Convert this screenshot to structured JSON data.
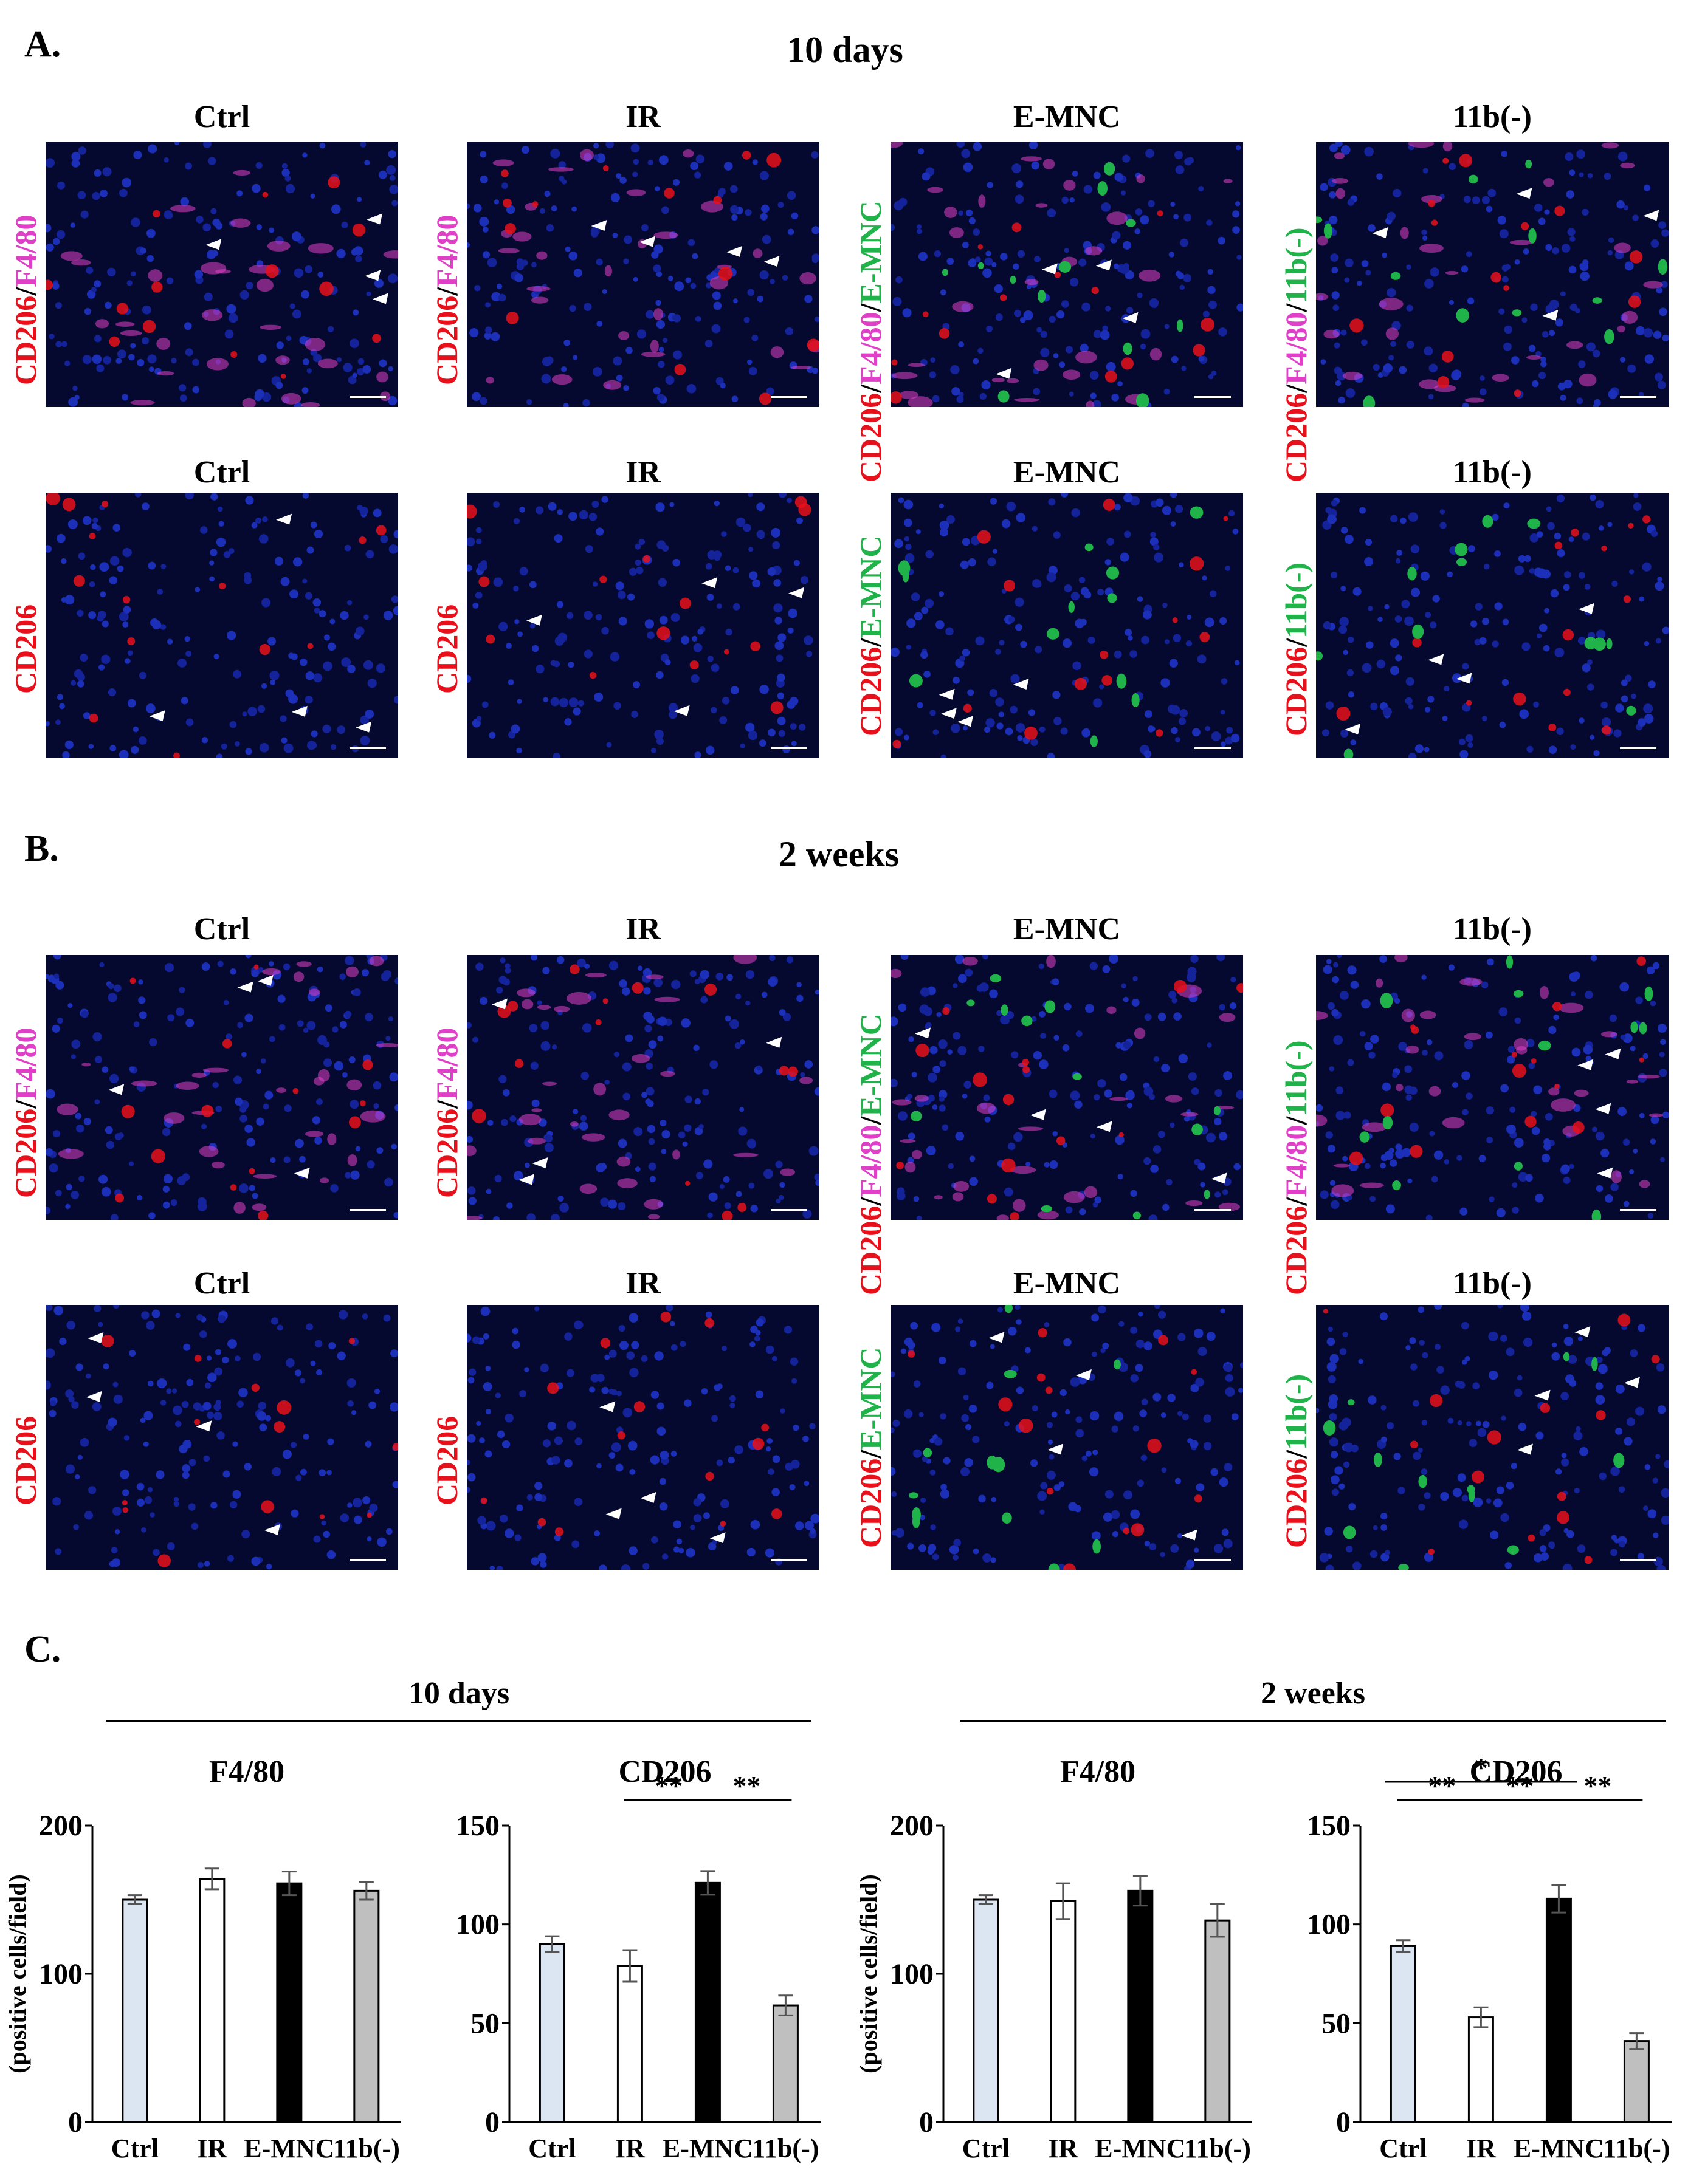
{
  "panelA": {
    "letter": "A.",
    "title": "10 days",
    "col_titles_top": [
      "Ctrl",
      "IR",
      "E-MNC",
      "11b(-)"
    ],
    "col_titles_bottom": [
      "Ctrl",
      "IR",
      "E-MNC",
      "11b(-)"
    ],
    "row1_labels": [
      [
        {
          "t": "CD206",
          "c": "red"
        },
        {
          "t": "/",
          "c": "black"
        },
        {
          "t": "F4/80",
          "c": "magenta"
        }
      ],
      [
        {
          "t": "CD206",
          "c": "red"
        },
        {
          "t": "/",
          "c": "black"
        },
        {
          "t": "F4/80",
          "c": "magenta"
        }
      ],
      [
        {
          "t": "CD206",
          "c": "red"
        },
        {
          "t": "/",
          "c": "black"
        },
        {
          "t": "F4/80",
          "c": "magenta"
        },
        {
          "t": "/",
          "c": "black"
        },
        {
          "t": "E-MNC",
          "c": "green"
        }
      ],
      [
        {
          "t": "CD206",
          "c": "red"
        },
        {
          "t": "/",
          "c": "black"
        },
        {
          "t": "F4/80",
          "c": "magenta"
        },
        {
          "t": "/",
          "c": "black"
        },
        {
          "t": "11b(-)",
          "c": "green"
        }
      ]
    ],
    "row2_labels": [
      [
        {
          "t": "CD206",
          "c": "red"
        }
      ],
      [
        {
          "t": "CD206",
          "c": "red"
        }
      ],
      [
        {
          "t": "CD206",
          "c": "red"
        },
        {
          "t": "/",
          "c": "black"
        },
        {
          "t": "E-MNC",
          "c": "green"
        }
      ],
      [
        {
          "t": "CD206",
          "c": "red"
        },
        {
          "t": "/",
          "c": "black"
        },
        {
          "t": "11b(-)",
          "c": "green"
        }
      ]
    ]
  },
  "panelB": {
    "letter": "B.",
    "title": "2 weeks",
    "col_titles_top": [
      "Ctrl",
      "IR",
      "E-MNC",
      "11b(-)"
    ],
    "col_titles_bottom": [
      "Ctrl",
      "IR",
      "E-MNC",
      "11b(-)"
    ],
    "row1_labels": [
      [
        {
          "t": "CD206",
          "c": "red"
        },
        {
          "t": "/",
          "c": "black"
        },
        {
          "t": "F4/80",
          "c": "magenta"
        }
      ],
      [
        {
          "t": "CD206",
          "c": "red"
        },
        {
          "t": "/",
          "c": "black"
        },
        {
          "t": "F4/80",
          "c": "magenta"
        }
      ],
      [
        {
          "t": "CD206",
          "c": "red"
        },
        {
          "t": "/",
          "c": "black"
        },
        {
          "t": "F4/80",
          "c": "magenta"
        },
        {
          "t": "/",
          "c": "black"
        },
        {
          "t": "E-MNC",
          "c": "green"
        }
      ],
      [
        {
          "t": "CD206",
          "c": "red"
        },
        {
          "t": "/",
          "c": "black"
        },
        {
          "t": "F4/80",
          "c": "magenta"
        },
        {
          "t": "/",
          "c": "black"
        },
        {
          "t": "11b(-)",
          "c": "green"
        }
      ]
    ],
    "row2_labels": [
      [
        {
          "t": "CD206",
          "c": "red"
        }
      ],
      [
        {
          "t": "CD206",
          "c": "red"
        }
      ],
      [
        {
          "t": "CD206",
          "c": "red"
        },
        {
          "t": "/",
          "c": "black"
        },
        {
          "t": "E-MNC",
          "c": "green"
        }
      ],
      [
        {
          "t": "CD206",
          "c": "red"
        },
        {
          "t": "/",
          "c": "black"
        },
        {
          "t": "11b(-)",
          "c": "green"
        }
      ]
    ]
  },
  "panelC": {
    "letter": "C.",
    "section_10d": "10 days",
    "section_2w": "2 weeks",
    "ylabel": "(positive cells/field)"
  },
  "colors": {
    "ctrl_fill": "#dce6f2",
    "ir_fill": "#ffffff",
    "emnc_fill": "#000000",
    "cd11b_fill": "#bfbfbf",
    "red": "#e8101a",
    "magenta": "#e040c8",
    "green": "#1fb34a",
    "tissue": "#050930"
  },
  "chart_data": [
    {
      "type": "bar",
      "title": "F4/80",
      "group": "10 days",
      "categories": [
        "Ctrl",
        "IR",
        "E-MNC",
        "11b(-)"
      ],
      "values": [
        150,
        164,
        161,
        156
      ],
      "errors": [
        3,
        7,
        8,
        6
      ],
      "ylim": [
        0,
        200
      ],
      "yticks": [
        0,
        100,
        200
      ],
      "ylabel": "(positive cells/field)",
      "significance": []
    },
    {
      "type": "bar",
      "title": "CD206",
      "group": "10 days",
      "categories": [
        "Ctrl",
        "IR",
        "E-MNC",
        "11b(-)"
      ],
      "values": [
        90,
        79,
        121,
        59
      ],
      "errors": [
        4,
        8,
        6,
        5
      ],
      "ylim": [
        0,
        150
      ],
      "yticks": [
        0,
        50,
        100,
        150
      ],
      "ylabel": "",
      "significance": [
        {
          "from": 1,
          "to": 2,
          "label": "**"
        },
        {
          "from": 2,
          "to": 3,
          "label": "**"
        }
      ]
    },
    {
      "type": "bar",
      "title": "F4/80",
      "group": "2 weeks",
      "categories": [
        "Ctrl",
        "IR",
        "E-MNC",
        "11b(-)"
      ],
      "values": [
        150,
        149,
        156,
        136
      ],
      "errors": [
        3,
        12,
        10,
        11
      ],
      "ylim": [
        0,
        200
      ],
      "yticks": [
        0,
        100,
        200
      ],
      "ylabel": "(positive cells/field)",
      "significance": []
    },
    {
      "type": "bar",
      "title": "CD206",
      "group": "2 weeks",
      "categories": [
        "Ctrl",
        "IR",
        "E-MNC",
        "11b(-)"
      ],
      "values": [
        89,
        53,
        113,
        41
      ],
      "errors": [
        3,
        5,
        7,
        4
      ],
      "ylim": [
        0,
        150
      ],
      "yticks": [
        0,
        50,
        100,
        150
      ],
      "ylabel": "",
      "significance": [
        {
          "from": 0,
          "to": 1,
          "label": "**"
        },
        {
          "from": 1,
          "to": 2,
          "label": "**"
        },
        {
          "from": 2,
          "to": 3,
          "label": "**"
        },
        {
          "from": 0,
          "to": 2,
          "label": "*"
        }
      ]
    }
  ]
}
